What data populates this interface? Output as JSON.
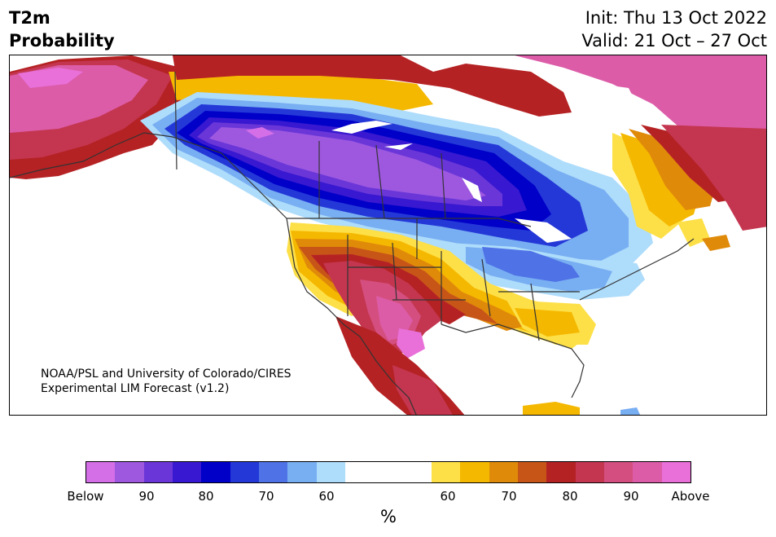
{
  "header": {
    "title_line1": "T2m",
    "title_line2": "Probability",
    "init": "Init: Thu 13 Oct 2022",
    "valid": "Valid: 21 Oct – 27 Oct"
  },
  "map": {
    "credit_line1": "NOAA/PSL and University of Colorado/CIRES",
    "credit_line2": "Experimental LIM Forecast (v1.2)",
    "regions": [
      {
        "name": "alaska",
        "category": "above-90"
      },
      {
        "name": "western-canada-north-central-us",
        "category": "below-90"
      },
      {
        "name": "great-lakes-ohio-valley",
        "category": "below-60"
      },
      {
        "name": "southwest-us",
        "category": "above-80"
      },
      {
        "name": "southeast-us",
        "category": "above-60"
      },
      {
        "name": "eastern-canada-greenland",
        "category": "above-80"
      }
    ]
  },
  "colorbar": {
    "unit_label": "%",
    "tick_labels": [
      "Below",
      "90",
      "80",
      "70",
      "60",
      "60",
      "70",
      "80",
      "90",
      "Above"
    ],
    "below_colors": [
      "#d56fe8",
      "#9e58e0",
      "#6a36d8",
      "#3818d0",
      "#0000c8",
      "#2438d8",
      "#4f72e6",
      "#78aef2",
      "#aedcfb"
    ],
    "neutral_color": "#ffffff",
    "above_colors": [
      "#fde047",
      "#f5b800",
      "#e08a0a",
      "#c85518",
      "#b52224",
      "#c43650",
      "#d44f80",
      "#dc5ca8",
      "#e870d8"
    ]
  }
}
